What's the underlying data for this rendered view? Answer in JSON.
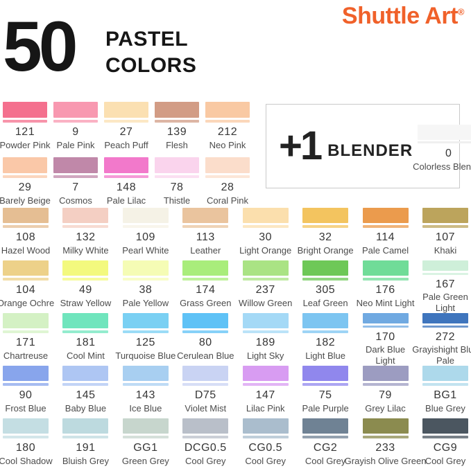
{
  "header": {
    "count": "50",
    "title": "PASTEL\nCOLORS",
    "brand": "Shuttle Art",
    "registered": "®",
    "brand_color": "#F0612A"
  },
  "blender": {
    "plus": "+1",
    "label": "BLENDER",
    "code": "0",
    "name": "Colorless Blender",
    "chip_color": "#f6f6f6"
  },
  "rows": [
    {
      "columns": 5,
      "swatches": [
        {
          "code": "121",
          "name": "Powder Pink",
          "color": "#F4708E"
        },
        {
          "code": "9",
          "name": "Pale Pink",
          "color": "#F898B0"
        },
        {
          "code": "27",
          "name": "Peach Puff",
          "color": "#FBE0B2"
        },
        {
          "code": "139",
          "name": "Flesh",
          "color": "#D29C85"
        },
        {
          "code": "212",
          "name": "Neo Pink",
          "color": "#F9C9A3"
        }
      ]
    },
    {
      "columns": 5,
      "swatches": [
        {
          "code": "29",
          "name": "Barely Beige",
          "color": "#FAC8A8"
        },
        {
          "code": "7",
          "name": "Cosmos",
          "color": "#C088A9"
        },
        {
          "code": "148",
          "name": "Pale Lilac",
          "color": "#F279CB"
        },
        {
          "code": "78",
          "name": "Thistle",
          "color": "#FAD4ED"
        },
        {
          "code": "28",
          "name": "Coral Pink",
          "color": "#FBDDCB"
        }
      ]
    },
    {
      "columns": 8,
      "swatches": [
        {
          "code": "108",
          "name": "Hazel Wood",
          "color": "#E5BE93"
        },
        {
          "code": "132",
          "name": "Milky White",
          "color": "#F4CFC3"
        },
        {
          "code": "109",
          "name": "Pearl White",
          "color": "#F5F2E6"
        },
        {
          "code": "113",
          "name": "Leather",
          "color": "#EAC49E"
        },
        {
          "code": "30",
          "name": "Light Orange",
          "color": "#FBDFAD"
        },
        {
          "code": "32",
          "name": "Bright Orange",
          "color": "#F3C45F"
        },
        {
          "code": "114",
          "name": "Pale Camel",
          "color": "#EB9B4D"
        },
        {
          "code": "107",
          "name": "Khaki",
          "color": "#BCA45C"
        }
      ]
    },
    {
      "columns": 8,
      "swatches": [
        {
          "code": "104",
          "name": "Orange Ochre",
          "color": "#EDD189"
        },
        {
          "code": "49",
          "name": "Straw Yellow",
          "color": "#F3F97E"
        },
        {
          "code": "38",
          "name": "Pale Yellow",
          "color": "#F5FCB5"
        },
        {
          "code": "174",
          "name": "Grass Green",
          "color": "#A9ED7B"
        },
        {
          "code": "237",
          "name": "Willow Green",
          "color": "#AAE384"
        },
        {
          "code": "305",
          "name": "Leaf Green",
          "color": "#6EC857"
        },
        {
          "code": "176",
          "name": "Neo Mint Light",
          "color": "#70DC98"
        },
        {
          "code": "167",
          "name": "Pale Green\nLight",
          "color": "#CEEFD9"
        }
      ]
    },
    {
      "columns": 8,
      "swatches": [
        {
          "code": "171",
          "name": "Chartreuse",
          "color": "#D4F1C4"
        },
        {
          "code": "181",
          "name": "Cool Mint",
          "color": "#70E5BD"
        },
        {
          "code": "125",
          "name": "Turquoise Blue",
          "color": "#7AD0F3"
        },
        {
          "code": "80",
          "name": "Cerulean Blue",
          "color": "#5FC2F6"
        },
        {
          "code": "189",
          "name": "Light Sky",
          "color": "#A4D9F6"
        },
        {
          "code": "182",
          "name": "Light Blue",
          "color": "#7DC5F1"
        },
        {
          "code": "170",
          "name": "Dark Blue\nLight",
          "color": "#70A9E1"
        },
        {
          "code": "272",
          "name": "Grayishight Blue\nPale",
          "color": "#3F75BD"
        }
      ]
    },
    {
      "columns": 8,
      "swatches": [
        {
          "code": "90",
          "name": "Frost Blue",
          "color": "#88A5EC"
        },
        {
          "code": "145",
          "name": "Baby Blue",
          "color": "#AEC6F3"
        },
        {
          "code": "143",
          "name": "Ice Blue",
          "color": "#A8CFF1"
        },
        {
          "code": "D75",
          "name": "Violet Mist",
          "color": "#C9D3F3"
        },
        {
          "code": "147",
          "name": "Lilac Pink",
          "color": "#D89CF2"
        },
        {
          "code": "75",
          "name": "Pale Purple",
          "color": "#9087ED"
        },
        {
          "code": "79",
          "name": "Grey Lilac",
          "color": "#9C9CC1"
        },
        {
          "code": "BG1",
          "name": "Blue Grey",
          "color": "#ADD9EB"
        }
      ]
    },
    {
      "columns": 8,
      "swatches": [
        {
          "code": "180",
          "name": "Cool Shadow",
          "color": "#C4DEE3"
        },
        {
          "code": "191",
          "name": "Bluish Grey",
          "color": "#BDDADF"
        },
        {
          "code": "GG1",
          "name": "Green Grey",
          "color": "#C7D6CD"
        },
        {
          "code": "DCG0.5",
          "name": "Cool Grey",
          "color": "#B9BFC9"
        },
        {
          "code": "CG0.5",
          "name": "Cool Grey",
          "color": "#AABDCD"
        },
        {
          "code": "CG2",
          "name": "Cool Grey",
          "color": "#6F8294"
        },
        {
          "code": "233",
          "name": "Grayish Olive Green",
          "color": "#8B8B4F"
        },
        {
          "code": "CG9",
          "name": "Cool Grey",
          "color": "#4B5660"
        }
      ]
    }
  ]
}
